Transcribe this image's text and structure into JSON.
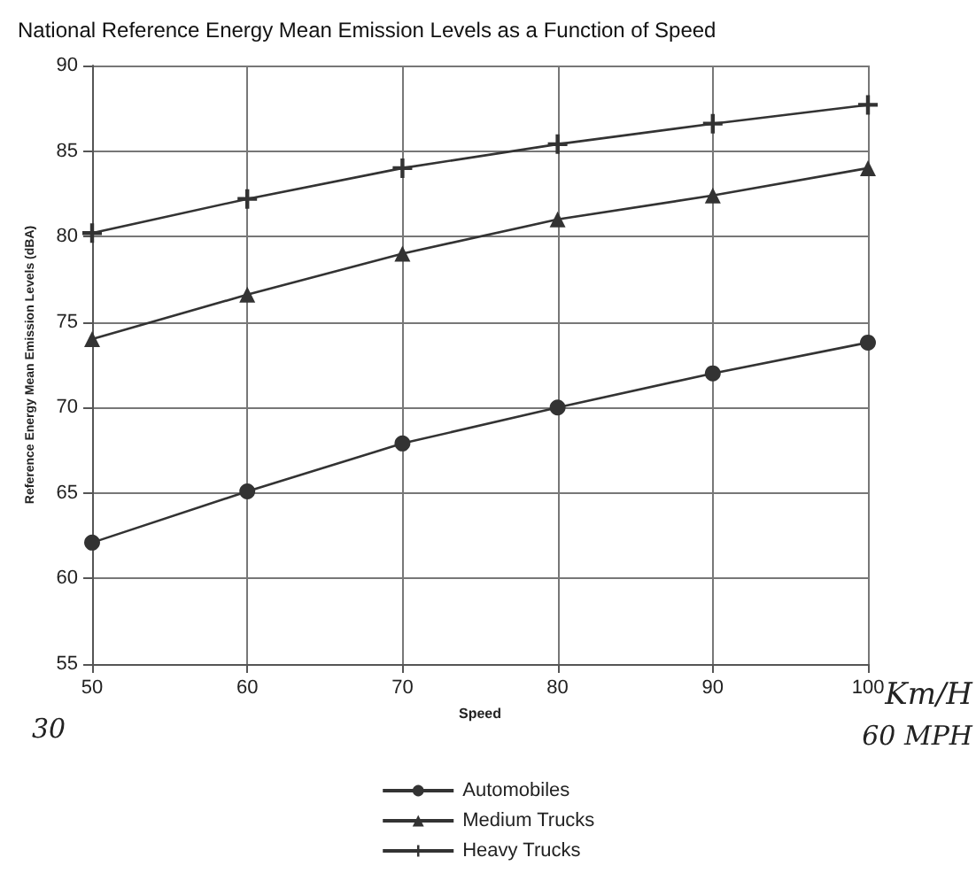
{
  "chart_data": {
    "type": "line",
    "title": "National Reference Energy Mean Emission Levels as a Function of Speed",
    "xlabel": "Speed",
    "ylabel": "Reference Energy Mean Emission Levels (dBA)",
    "x": [
      50,
      60,
      70,
      80,
      90,
      100
    ],
    "series": [
      {
        "name": "Automobiles",
        "color": "#333333",
        "marker": "circle",
        "values": [
          62.1,
          65.1,
          67.9,
          70.0,
          72.0,
          73.8
        ]
      },
      {
        "name": "Medium Trucks",
        "color": "#333333",
        "marker": "triangle",
        "values": [
          74.0,
          76.6,
          79.0,
          81.0,
          82.4,
          84.0
        ]
      },
      {
        "name": "Heavy Trucks",
        "color": "#333333",
        "marker": "cross",
        "values": [
          80.2,
          82.2,
          84.0,
          85.4,
          86.6,
          87.7
        ]
      }
    ],
    "xlim": [
      50,
      100
    ],
    "xticks": [
      50,
      60,
      70,
      80,
      90,
      100
    ],
    "ylim": [
      55,
      90
    ],
    "yticks": [
      55,
      60,
      65,
      70,
      75,
      80,
      85,
      90
    ],
    "grid": true,
    "legend": "bottom",
    "line_style": "solid",
    "annotations": [
      "Km/H",
      "30",
      "60 MPH"
    ]
  }
}
